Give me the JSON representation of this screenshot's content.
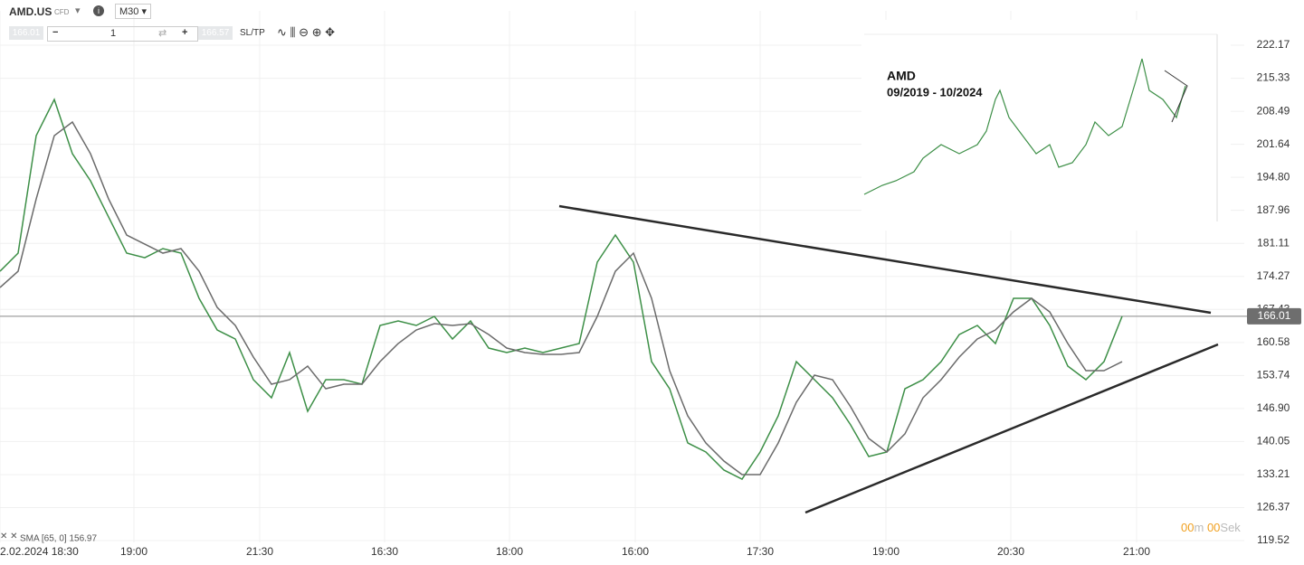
{
  "toolbar": {
    "symbol": "AMD.US",
    "instrument": "CFD",
    "interval": "M30",
    "bid": "166.01",
    "volume": "1",
    "ask": "166.57",
    "sltp": "SL/TP"
  },
  "inset": {
    "title": "AMD",
    "subtitle": "09/2019 - 10/2024"
  },
  "timer": {
    "minutes": "00",
    "minutes_unit": "m",
    "seconds": "00",
    "seconds_unit": "Sek"
  },
  "chart_data": {
    "type": "line",
    "x": [
      0,
      1,
      2,
      3,
      4,
      5,
      6,
      7,
      8,
      9,
      10,
      11,
      12,
      13,
      14,
      15,
      16,
      17,
      18,
      19,
      20,
      21,
      22,
      23,
      24,
      25,
      26,
      27,
      28,
      29,
      30,
      31,
      32,
      33,
      34,
      35,
      36,
      37,
      38,
      39,
      40,
      41,
      42,
      43,
      44,
      45,
      46,
      47,
      48,
      49,
      50,
      51,
      52,
      53,
      54,
      55,
      56,
      57,
      58,
      59,
      60,
      61,
      62
    ],
    "series": [
      {
        "color": "#3d8f47",
        "values": [
          175.34,
          179.09,
          203.44,
          210.93,
          199.69,
          194.08,
          186.58,
          179.09,
          178.15,
          180.03,
          179.09,
          169.73,
          163.17,
          161.3,
          152.87,
          149.12,
          158.49,
          146.31,
          152.87,
          152.87,
          151.93,
          164.11,
          165.04,
          164.11,
          165.98,
          161.3,
          165.04,
          159.42,
          158.49,
          159.42,
          158.49,
          159.42,
          160.36,
          177.22,
          182.84,
          177.22,
          156.61,
          150.99,
          139.76,
          137.88,
          134.14,
          132.26,
          137.88,
          145.38,
          156.61,
          152.87,
          149.12,
          143.5,
          136.95,
          137.88,
          150.99,
          152.87,
          156.61,
          162.23,
          164.11,
          160.36,
          169.73,
          169.73,
          164.11,
          155.68,
          152.87,
          156.61,
          166.01
        ]
      },
      {
        "name": "SMA [65, 0] 156.97",
        "color": "#6b6b6b",
        "values": [
          171.97,
          175.34,
          190.33,
          203.44,
          206.25,
          199.69,
          190.33,
          182.84,
          180.96,
          179.09,
          180.03,
          175.34,
          167.85,
          164.11,
          157.55,
          151.93,
          152.87,
          155.68,
          150.99,
          151.93,
          151.93,
          156.61,
          160.36,
          163.17,
          164.48,
          164.11,
          164.48,
          162.23,
          159.42,
          158.49,
          158.11,
          158.11,
          158.49,
          165.98,
          175.34,
          179.09,
          169.73,
          154.74,
          145.38,
          139.76,
          136.01,
          133.2,
          133.2,
          139.76,
          148.19,
          153.8,
          152.87,
          147.25,
          140.69,
          137.88,
          141.64,
          149.12,
          152.87,
          157.55,
          161.3,
          163.17,
          166.92,
          169.73,
          166.92,
          160.36,
          154.74,
          154.74,
          156.61
        ]
      }
    ],
    "trendlines": [
      {
        "x": [
          30.9,
          66.9
        ],
        "values": [
          188.83,
          166.73
        ]
      },
      {
        "x": [
          44.5,
          67.3
        ],
        "values": [
          125.33,
          160.17
        ]
      }
    ],
    "current_price": 166.01,
    "xlim": [
      0,
      68.75
    ],
    "ylim": [
      119.15,
      229.3
    ],
    "yticks": [
      222.17,
      215.33,
      208.49,
      201.64,
      {
        "value": 194.8,
        "label": "194.80"
      },
      187.96,
      181.11,
      174.27,
      167.43,
      160.58,
      153.74,
      {
        "value": 146.9,
        "label": "146.90"
      },
      140.05,
      133.21,
      126.37,
      119.52
    ],
    "xticks": [
      {
        "value": 0,
        "label": "2.02.2024 18:30"
      },
      {
        "value": 7.4,
        "label": "19:00"
      },
      {
        "value": 14.35,
        "label": "21:30"
      },
      {
        "value": 21.25,
        "label": "16:30"
      },
      {
        "value": 28.15,
        "label": "18:00"
      },
      {
        "value": 35.1,
        "label": "16:00"
      },
      {
        "value": 42,
        "label": "17:30"
      },
      {
        "value": 48.95,
        "label": "19:00"
      },
      {
        "value": 55.85,
        "label": "20:30"
      },
      {
        "value": 62.8,
        "label": "21:00"
      }
    ],
    "grid": true
  }
}
